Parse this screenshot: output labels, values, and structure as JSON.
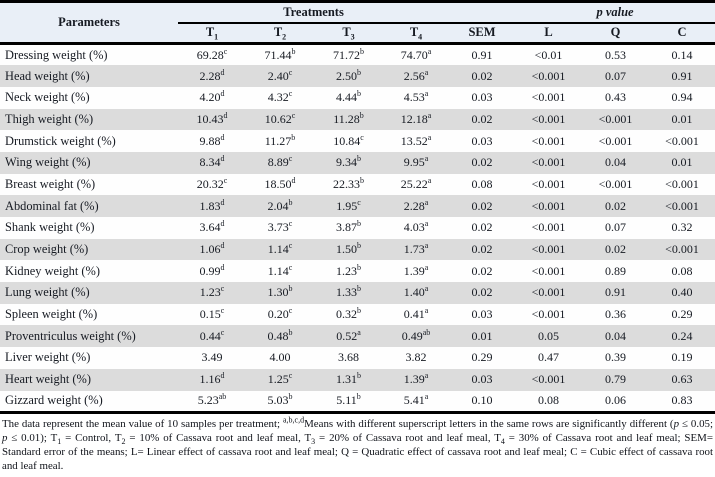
{
  "colors": {
    "header_bg": "#e9eff7",
    "row_stripe": "#dcdcdc",
    "rule": "#000000"
  },
  "table": {
    "header": {
      "parameters_label": "Parameters",
      "treatments_label": "Treatments",
      "pvalue_label": "p value",
      "treatment_cols": [
        {
          "base": "T",
          "sub": "1"
        },
        {
          "base": "T",
          "sub": "2"
        },
        {
          "base": "T",
          "sub": "3"
        },
        {
          "base": "T",
          "sub": "4"
        }
      ],
      "sem_label": "SEM",
      "pvalue_cols": [
        "L",
        "Q",
        "C"
      ]
    },
    "rows": [
      {
        "parameter": "Dressing weight (%)",
        "cells": [
          "69.28^c",
          "71.44^b",
          "71.72^b",
          "74.70^a",
          "0.91",
          "<0.01",
          "0.53",
          "0.14"
        ]
      },
      {
        "parameter": "Head weight (%)",
        "cells": [
          "2.28^d",
          "2.40^c",
          "2.50^b",
          "2.56^a",
          "0.02",
          "<0.001",
          "0.07",
          "0.91"
        ]
      },
      {
        "parameter": "Neck weight (%)",
        "cells": [
          "4.20^d",
          "4.32^c",
          "4.44^b",
          "4.53^a",
          "0.03",
          "<0.001",
          "0.43",
          "0.94"
        ]
      },
      {
        "parameter": "Thigh weight (%)",
        "cells": [
          "10.43^d",
          "10.62^c",
          "11.28^b",
          "12.18^a",
          "0.02",
          "<0.001",
          "<0.001",
          "0.01"
        ]
      },
      {
        "parameter": "Drumstick weight (%)",
        "cells": [
          "9.88^d",
          "11.27^b",
          "10.84^c",
          "13.52^a",
          "0.03",
          "<0.001",
          "<0.001",
          "<0.001"
        ]
      },
      {
        "parameter": "Wing weight (%)",
        "cells": [
          "8.34^d",
          "8.89^c",
          "9.34^b",
          "9.95^a",
          "0.02",
          "<0.001",
          "0.04",
          "0.01"
        ]
      },
      {
        "parameter": "Breast weight (%)",
        "cells": [
          "20.32^c",
          "18.50^d",
          "22.33^b",
          "25.22^a",
          "0.08",
          "<0.001",
          "<0.001",
          "<0.001"
        ]
      },
      {
        "parameter": "Abdominal fat (%)",
        "cells": [
          "1.83^d",
          "2.04^b",
          "1.95^c",
          "2.28^a",
          "0.02",
          "<0.001",
          "0.02",
          "<0.001"
        ]
      },
      {
        "parameter": "Shank weight (%)",
        "cells": [
          "3.64^d",
          "3.73^c",
          "3.87^b",
          "4.03^a",
          "0.02",
          "<0.001",
          "0.07",
          "0.32"
        ]
      },
      {
        "parameter": "Crop weight (%)",
        "cells": [
          "1.06^d",
          "1.14^c",
          "1.50^b",
          "1.73^a",
          "0.02",
          "<0.001",
          "0.02",
          "<0.001"
        ]
      },
      {
        "parameter": "Kidney weight (%)",
        "cells": [
          "0.99^d",
          "1.14^c",
          "1.23^b",
          "1.39^a",
          "0.02",
          "<0.001",
          "0.89",
          "0.08"
        ]
      },
      {
        "parameter": "Lung weight (%)",
        "cells": [
          "1.23^c",
          "1.30^b",
          "1.33^b",
          "1.40^a",
          "0.02",
          "<0.001",
          "0.91",
          "0.40"
        ]
      },
      {
        "parameter": "Spleen weight (%)",
        "cells": [
          "0.15^c",
          "0.20^c",
          "0.32^b",
          "0.41^a",
          "0.03",
          "<0.001",
          "0.36",
          "0.29"
        ]
      },
      {
        "parameter": "Proventriculus weight (%)",
        "cells": [
          "0.44^c",
          "0.48^b",
          "0.52^a",
          "0.49^ab",
          "0.01",
          "0.05",
          "0.04",
          "0.24"
        ]
      },
      {
        "parameter": "Liver weight (%)",
        "cells": [
          "3.49",
          "4.00",
          "3.68",
          "3.82",
          "0.29",
          "0.47",
          "0.39",
          "0.19"
        ]
      },
      {
        "parameter": "Heart weight (%)",
        "cells": [
          "1.16^d",
          "1.25^c",
          "1.31^b",
          "1.39^a",
          "0.03",
          "<0.001",
          "0.79",
          "0.63"
        ]
      },
      {
        "parameter": "Gizzard weight (%)",
        "cells": [
          "5.23^ab",
          "5.03^b",
          "5.11^b",
          "5.41^a",
          "0.10",
          "0.08",
          "0.06",
          "0.83"
        ]
      }
    ]
  },
  "footnote": {
    "segments": [
      {
        "t": "The data represent the mean value of 10 samples per treatment; "
      },
      {
        "t": "a,b,c,d",
        "style": "sup"
      },
      {
        "t": "Means with different superscript letters in the same rows are significantly different ("
      },
      {
        "t": "p",
        "style": "i"
      },
      {
        "t": " ≤ 0.05; "
      },
      {
        "t": "p",
        "style": "i"
      },
      {
        "t": " ≤ 0.01); T"
      },
      {
        "t": "1",
        "style": "sub"
      },
      {
        "t": " = Control, T"
      },
      {
        "t": "2",
        "style": "sub"
      },
      {
        "t": " = 10% of Cassava root and leaf meal, T"
      },
      {
        "t": "3",
        "style": "sub"
      },
      {
        "t": " = 20% of Cassava root and leaf meal, T"
      },
      {
        "t": "4",
        "style": "sub"
      },
      {
        "t": " = 30% of Cassava root and leaf meal; SEM= Standard error of the means; L= Linear effect of cassava root and leaf meal; Q = Quadratic effect of cassava root and leaf meal; C = Cubic effect of cassava root and leaf meal."
      }
    ]
  }
}
